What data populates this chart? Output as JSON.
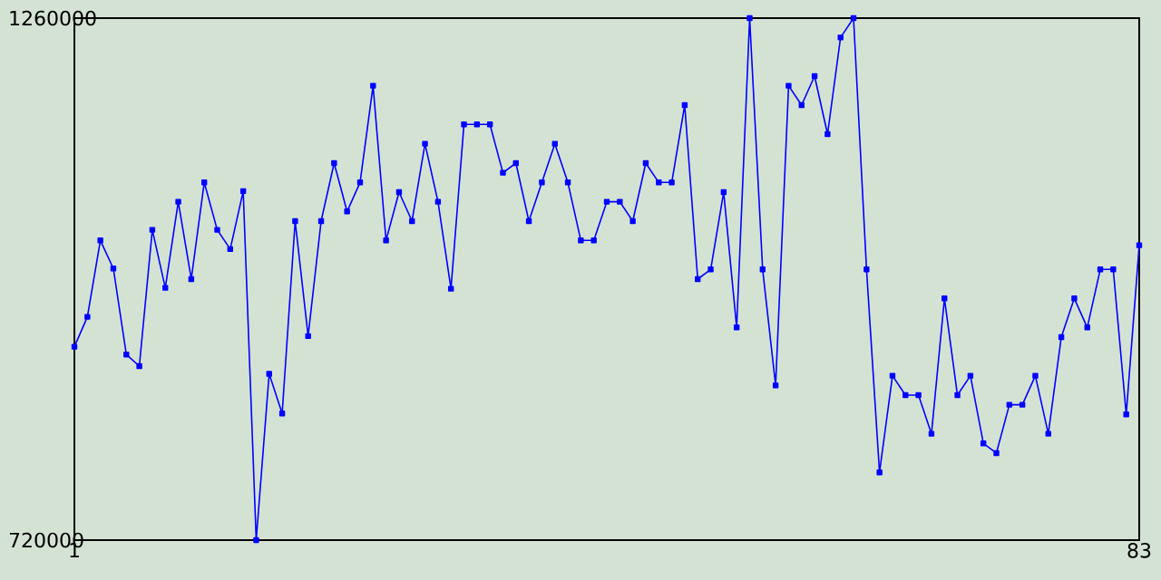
{
  "chart_data": {
    "type": "line",
    "x": [
      1,
      2,
      3,
      4,
      5,
      6,
      7,
      8,
      9,
      10,
      11,
      12,
      13,
      14,
      15,
      16,
      17,
      18,
      19,
      20,
      21,
      22,
      23,
      24,
      25,
      26,
      27,
      28,
      29,
      30,
      31,
      32,
      33,
      34,
      35,
      36,
      37,
      38,
      39,
      40,
      41,
      42,
      43,
      44,
      45,
      46,
      47,
      48,
      49,
      50,
      51,
      52,
      53,
      54,
      55,
      56,
      57,
      58,
      59,
      60,
      61,
      62,
      63,
      64,
      65,
      66,
      67,
      68,
      69,
      70,
      71,
      72,
      73,
      74,
      75,
      76,
      77,
      78,
      79,
      80,
      81,
      82,
      83
    ],
    "series": [
      {
        "color": "#0000ff",
        "values": [
          920000,
          951000,
          1030000,
          1001000,
          912000,
          900000,
          1041000,
          981000,
          1070000,
          990000,
          1090000,
          1041000,
          1021000,
          1081000,
          720000,
          892000,
          851000,
          1050000,
          931000,
          1050000,
          1110000,
          1060000,
          1090000,
          1190000,
          1030000,
          1080000,
          1050000,
          1130000,
          1070000,
          980000,
          1150000,
          1150000,
          1150000,
          1100000,
          1110000,
          1050000,
          1090000,
          1130000,
          1090000,
          1030000,
          1030000,
          1070000,
          1070000,
          1050000,
          1110000,
          1090000,
          1090000,
          1170000,
          990000,
          1000000,
          1080000,
          940000,
          1260000,
          1000000,
          880000,
          1190000,
          1170000,
          1200000,
          1140000,
          1240000,
          1260000,
          1000000,
          790000,
          890000,
          870000,
          870000,
          830000,
          970000,
          870000,
          890000,
          820000,
          810000,
          860000,
          860000,
          890000,
          830000,
          930000,
          970000,
          940000,
          1000000,
          1000000,
          850000,
          1025000
        ]
      }
    ],
    "xlim": [
      1,
      83
    ],
    "xticks": [
      1,
      83
    ],
    "ylim": [
      720000,
      1260000
    ],
    "yticks": [
      720000,
      1260000
    ],
    "marker": "square",
    "line_style": "solid"
  }
}
